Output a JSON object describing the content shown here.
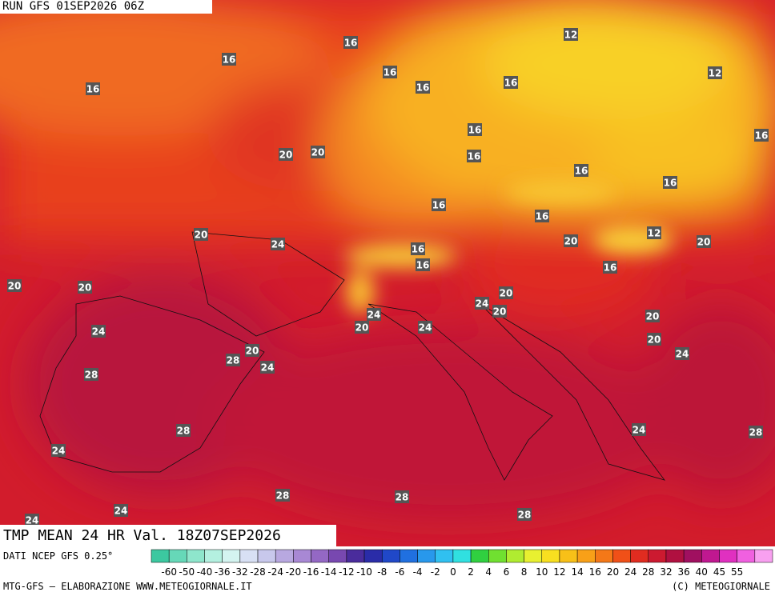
{
  "header": {
    "run": "RUN GFS 01SEP2026 06Z",
    "valid": "TMP MEAN 24 HR Val. 18Z07SEP2026"
  },
  "footer": {
    "source": "DATI NCEP GFS 0.25°",
    "credit": "MTG-GFS — ELABORAZIONE WWW.METEOGIORNALE.IT",
    "copyright": "(C) METEOGIORNALE"
  },
  "map": {
    "contour_labels": [
      16,
      12,
      16,
      16,
      16,
      16,
      12,
      16,
      16,
      16,
      16,
      20,
      20,
      16,
      16,
      16,
      16,
      12,
      20,
      24,
      20,
      20,
      16,
      16,
      16,
      20,
      20,
      20,
      24,
      20,
      24,
      20,
      24,
      20,
      24,
      20,
      20,
      28,
      24,
      24,
      28,
      28,
      24,
      24,
      28,
      28,
      28,
      28,
      24,
      24
    ]
  },
  "colorbar": {
    "ticks": [
      -60,
      -50,
      -40,
      -36,
      -32,
      -28,
      -24,
      -20,
      -16,
      -14,
      -12,
      -10,
      -8,
      -6,
      -4,
      -2,
      0,
      2,
      4,
      6,
      8,
      10,
      12,
      14,
      16,
      20,
      24,
      28,
      32,
      36,
      40,
      45,
      55
    ],
    "colors": [
      "#3cc8a0",
      "#66d8b8",
      "#8ee6cc",
      "#b4f0e0",
      "#d4f4f0",
      "#d8e0f4",
      "#c8c8ec",
      "#b8a8e0",
      "#a888d4",
      "#9468c4",
      "#7848b0",
      "#4a2c9c",
      "#2a2ca8",
      "#2048c8",
      "#2070e0",
      "#2898ec",
      "#30c0f0",
      "#30e0e0",
      "#30d040",
      "#70e030",
      "#b0ec30",
      "#e8f030",
      "#f8e020",
      "#f8c018",
      "#f8a018",
      "#f47818",
      "#f05018",
      "#e02c20",
      "#cc1a30",
      "#b01040",
      "#a01060",
      "#c01890",
      "#e030c0",
      "#f060e0",
      "#f8a0f0"
    ]
  }
}
